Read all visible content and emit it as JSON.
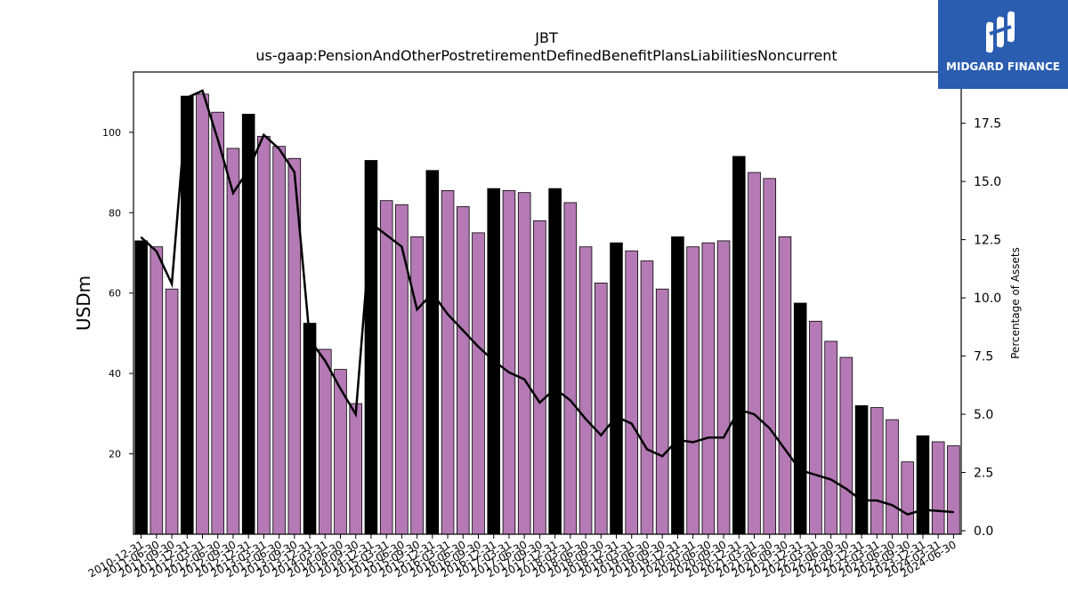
{
  "chart_data": {
    "type": "bar",
    "title": "JBT",
    "subtitle": "us-gaap:PensionAndOtherPostretirementDefinedBenefitPlansLiabilitiesNoncurrent",
    "ylabel": "USDm",
    "y2label": "Percentage of Assets",
    "ylim": [
      0,
      115
    ],
    "y2lim": [
      -0.15,
      19.7
    ],
    "yticks": [
      20,
      40,
      60,
      80,
      100
    ],
    "y2ticks": [
      "0.0",
      "2.5",
      "5.0",
      "7.5",
      "10.0",
      "12.5",
      "15.0",
      "17.5"
    ],
    "categories": [
      "2010-12-31",
      "2011-06-30",
      "2011-09-30",
      "2011-12-31",
      "2012-03-31",
      "2012-06-30",
      "2012-09-30",
      "2012-12-31",
      "2013-03-31",
      "2013-06-30",
      "2013-09-30",
      "2013-12-31",
      "2014-03-31",
      "2014-06-30",
      "2014-09-30",
      "2014-12-31",
      "2015-03-31",
      "2015-06-30",
      "2015-09-30",
      "2015-12-31",
      "2016-03-31",
      "2016-06-30",
      "2016-09-30",
      "2016-12-31",
      "2017-03-31",
      "2017-06-30",
      "2017-09-30",
      "2017-12-31",
      "2018-03-31",
      "2018-06-30",
      "2018-09-30",
      "2018-12-31",
      "2019-03-31",
      "2019-06-30",
      "2019-09-30",
      "2019-12-31",
      "2020-03-31",
      "2020-06-30",
      "2020-09-30",
      "2020-12-31",
      "2021-03-31",
      "2021-06-30",
      "2021-09-30",
      "2021-12-31",
      "2022-03-31",
      "2022-06-30",
      "2022-09-30",
      "2022-12-31",
      "2023-03-31",
      "2023-06-30",
      "2023-09-30",
      "2023-12-31",
      "2024-03-31",
      "2024-06-30"
    ],
    "series": [
      {
        "kind": "bar",
        "values": [
          73,
          71.5,
          61,
          109,
          109.5,
          105,
          96,
          104.5,
          99,
          96.5,
          93.5,
          52.5,
          46,
          41,
          32.5,
          93,
          83,
          82,
          74,
          90.5,
          85.5,
          81.5,
          75,
          86,
          85.5,
          85,
          78,
          86,
          82.5,
          71.5,
          62.5,
          72.5,
          70.5,
          68,
          61,
          74,
          71.5,
          72.5,
          73,
          94,
          90,
          88.5,
          74,
          57.5,
          53,
          48,
          44,
          32,
          31.5,
          28.5,
          18,
          24.5,
          23,
          22
        ],
        "highlight": [
          true,
          false,
          false,
          true,
          false,
          false,
          false,
          true,
          false,
          false,
          false,
          true,
          false,
          false,
          false,
          true,
          false,
          false,
          false,
          true,
          false,
          false,
          false,
          true,
          false,
          false,
          false,
          true,
          false,
          false,
          false,
          true,
          false,
          false,
          false,
          true,
          false,
          false,
          false,
          true,
          false,
          false,
          false,
          true,
          false,
          false,
          false,
          true,
          false,
          false,
          false,
          true,
          false,
          false
        ]
      },
      {
        "kind": "line",
        "axis": "right",
        "values": [
          12.6,
          12.0,
          10.6,
          18.6,
          18.9,
          16.8,
          14.5,
          15.5,
          17.0,
          16.4,
          15.4,
          8.2,
          7.3,
          6.1,
          5.0,
          13.2,
          12.7,
          12.2,
          9.5,
          10.2,
          9.3,
          8.6,
          7.9,
          7.3,
          6.8,
          6.5,
          5.5,
          6.1,
          5.6,
          4.8,
          4.1,
          4.9,
          4.6,
          3.5,
          3.2,
          3.9,
          3.8,
          4.0,
          4.0,
          5.2,
          5.0,
          4.4,
          3.5,
          2.6,
          2.4,
          2.2,
          1.8,
          1.3,
          1.3,
          1.1,
          0.7,
          0.9,
          0.85,
          0.8
        ]
      }
    ],
    "colors": {
      "bar": "#b57ab6",
      "highlight_bar": "#000000",
      "line": "#000000"
    }
  },
  "logo": {
    "text": "MIDGARD FINANCE"
  }
}
